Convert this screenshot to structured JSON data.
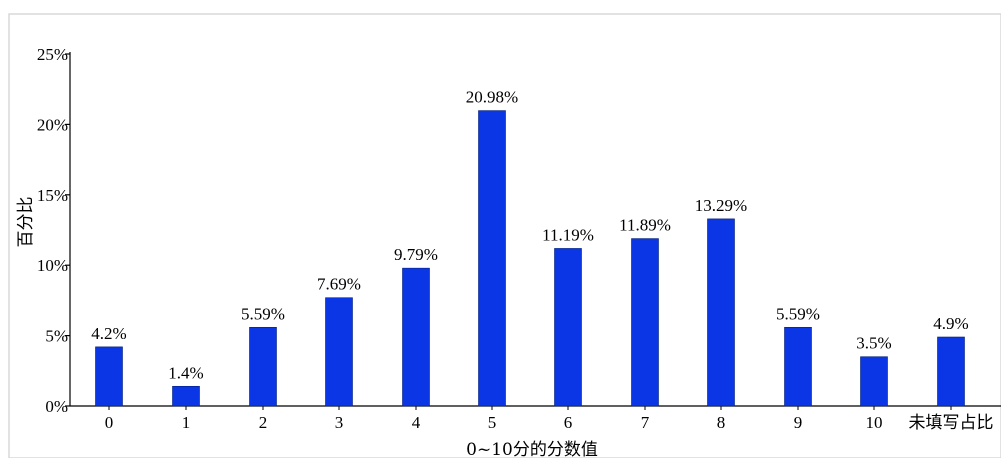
{
  "chart_data": {
    "type": "bar",
    "title": "",
    "xlabel": "0~10分的分数值",
    "ylabel": "百分比",
    "categories": [
      "0",
      "1",
      "2",
      "3",
      "4",
      "5",
      "6",
      "7",
      "8",
      "9",
      "10",
      "未填写占比"
    ],
    "values": [
      4.2,
      1.4,
      5.59,
      7.69,
      9.79,
      20.98,
      11.19,
      11.89,
      13.29,
      5.59,
      3.5,
      4.9
    ],
    "value_labels": [
      "4.2%",
      "1.4%",
      "5.59%",
      "7.69%",
      "9.79%",
      "20.98%",
      "11.19%",
      "11.89%",
      "13.29%",
      "5.59%",
      "3.5%",
      "4.9%"
    ],
    "ylim": [
      0,
      25
    ],
    "yticks": [
      0,
      5,
      10,
      15,
      20,
      25
    ],
    "ytick_labels": [
      "0%",
      "5%",
      "10%",
      "15%",
      "20%",
      "25%"
    ],
    "bar_color": "#0a36e6",
    "grid": false,
    "legend": "none"
  }
}
